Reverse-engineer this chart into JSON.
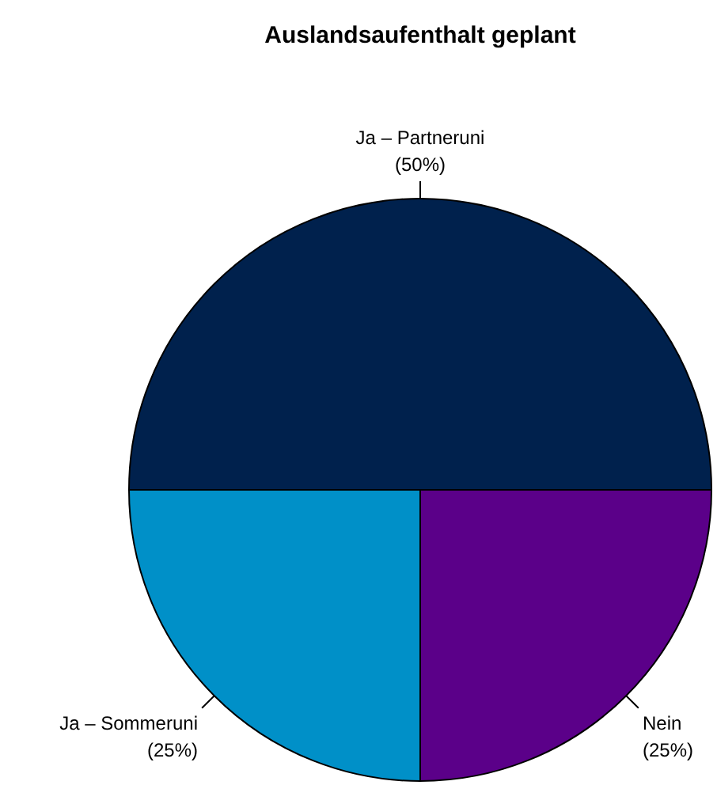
{
  "chart_data": {
    "type": "pie",
    "title": "Auslandsaufenthalt geplant",
    "categories": [
      "Ja – Partneruni",
      "Ja – Sommeruni",
      "Nein"
    ],
    "values": [
      50,
      25,
      25
    ],
    "value_labels": [
      "(50%)",
      "(25%)",
      "(25%)"
    ],
    "colors": [
      "#00214d",
      "#0090c8",
      "#5b0089"
    ]
  }
}
